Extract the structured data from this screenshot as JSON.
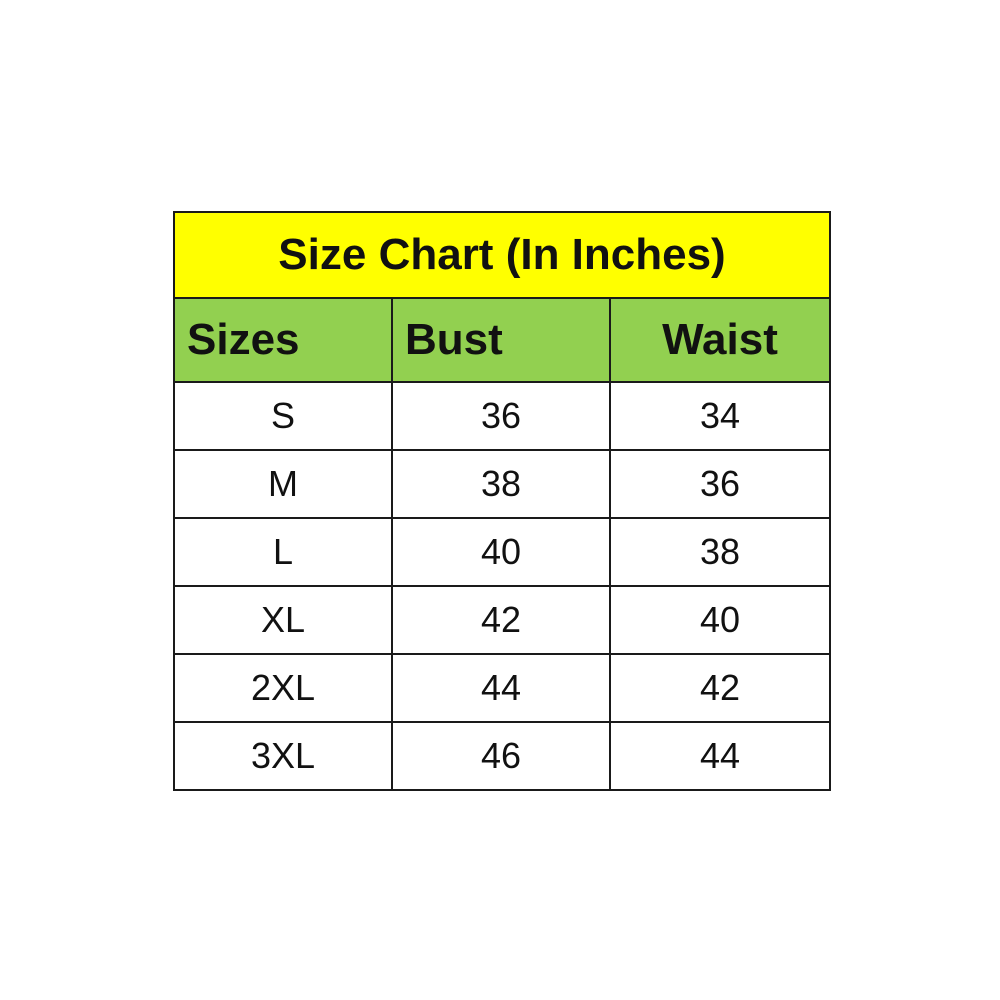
{
  "title": "Size Chart (In Inches)",
  "headers": [
    "Sizes",
    "Bust",
    "Waist"
  ],
  "rows": [
    [
      "S",
      "36",
      "34"
    ],
    [
      "M",
      "38",
      "36"
    ],
    [
      "L",
      "40",
      "38"
    ],
    [
      "XL",
      "42",
      "40"
    ],
    [
      "2XL",
      "44",
      "42"
    ],
    [
      "3XL",
      "46",
      "44"
    ]
  ],
  "colors": {
    "title_bg": "#ffff00",
    "header_bg": "#92d050"
  }
}
